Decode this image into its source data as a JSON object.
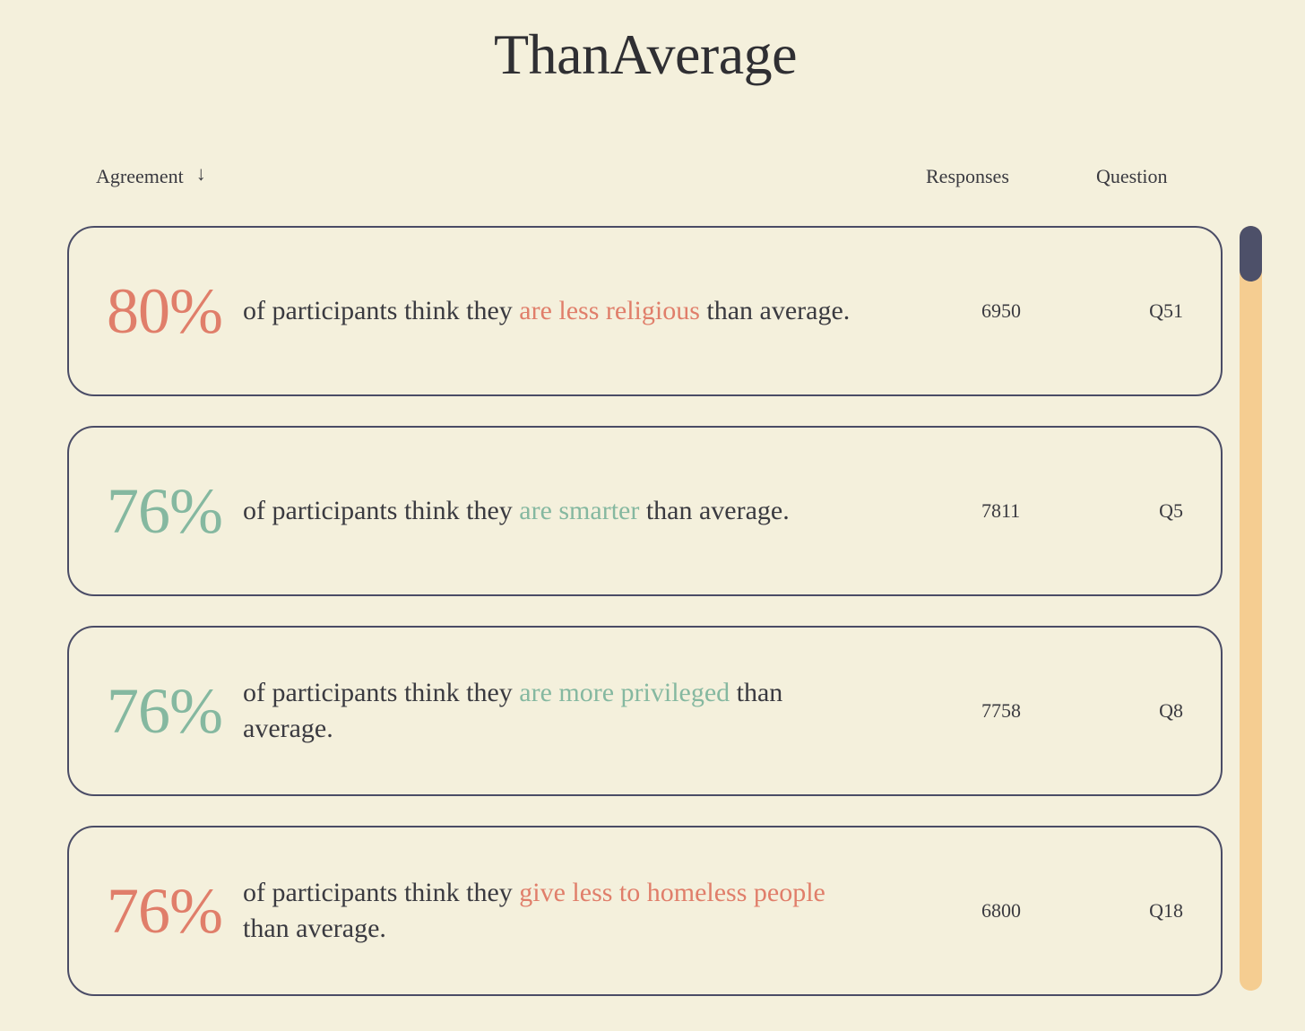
{
  "site": {
    "title": "ThanAverage"
  },
  "table_header": {
    "agreement_label": "Agreement",
    "sort_icon": "↓",
    "responses_label": "Responses",
    "question_label": "Question"
  },
  "colors": {
    "negative": "#e07e6a",
    "positive": "#85b8a0",
    "border": "#4a4c66",
    "scroll_track": "#f5cd91",
    "scroll_thumb": "#4d5069",
    "background": "#f4f0dc"
  },
  "rows": [
    {
      "percent": "80%",
      "tone": "negative",
      "prefix": "of participants think they ",
      "highlight": "are less religious",
      "suffix": " than average.",
      "responses": "6950",
      "question": "Q51"
    },
    {
      "percent": "76%",
      "tone": "positive",
      "prefix": "of participants think they ",
      "highlight": "are smarter",
      "suffix": " than average.",
      "responses": "7811",
      "question": "Q5"
    },
    {
      "percent": "76%",
      "tone": "positive",
      "prefix": "of participants think they ",
      "highlight": "are more privileged",
      "suffix": " than average.",
      "responses": "7758",
      "question": "Q8"
    },
    {
      "percent": "76%",
      "tone": "negative",
      "prefix": "of participants think they ",
      "highlight": "give less to homeless people",
      "suffix": " than average.",
      "responses": "6800",
      "question": "Q18"
    }
  ]
}
